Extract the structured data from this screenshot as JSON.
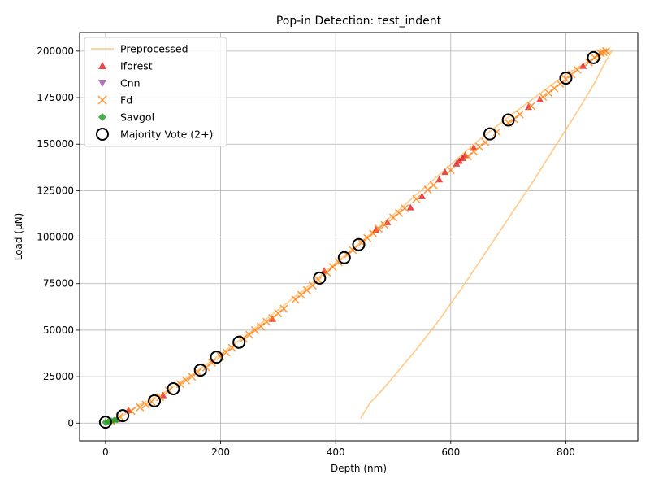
{
  "chart_data": {
    "type": "scatter",
    "title": "Pop-in Detection: test_indent",
    "xlabel": "Depth (nm)",
    "ylabel": "Load (µN)",
    "xlim": [
      -45,
      925
    ],
    "ylim": [
      -9500,
      210000
    ],
    "x_ticks": [
      0,
      200,
      400,
      600,
      800
    ],
    "y_ticks": [
      0,
      25000,
      50000,
      75000,
      100000,
      125000,
      150000,
      175000,
      200000
    ],
    "grid": true,
    "legend_position": "top-left",
    "series": [
      {
        "name": "Preprocessed",
        "kind": "line",
        "color": "#ffbf6e",
        "x": [
          0,
          15,
          30,
          60,
          100,
          150,
          200,
          250,
          300,
          350,
          400,
          450,
          500,
          550,
          600,
          650,
          700,
          750,
          800,
          850,
          880,
          870,
          850,
          820,
          780,
          740,
          700,
          660,
          620,
          580,
          540,
          510,
          480,
          460,
          450,
          443
        ],
        "y": [
          0,
          1500,
          4000,
          10000,
          16000,
          26000,
          37000,
          48500,
          61000,
          73000,
          86000,
          99000,
          112000,
          125500,
          139000,
          152500,
          164500,
          176000,
          187500,
          196500,
          200000,
          195000,
          183000,
          167500,
          148000,
          128500,
          110000,
          91500,
          73000,
          55500,
          39500,
          28500,
          17500,
          11000,
          6000,
          2500
        ]
      },
      {
        "name": "Iforest",
        "kind": "marker",
        "marker": "triangle-up",
        "color": "#e41a1c",
        "x": [
          20,
          40,
          100,
          290,
          380,
          470,
          490,
          530,
          550,
          580,
          590,
          610,
          615,
          620,
          625,
          640,
          735,
          755,
          830
        ],
        "y": [
          2000,
          7000,
          15000,
          56000,
          82000,
          104000,
          108000,
          116000,
          122000,
          131000,
          135000,
          139500,
          141000,
          142500,
          144000,
          148000,
          170000,
          174000,
          192000
        ]
      },
      {
        "name": "Cnn",
        "kind": "marker",
        "marker": "triangle-down",
        "color": "#984ea3",
        "x": [],
        "y": []
      },
      {
        "name": "Fd",
        "kind": "marker",
        "marker": "x",
        "color": "#ff7f0e",
        "x": [
          10,
          25,
          45,
          60,
          70,
          80,
          95,
          110,
          130,
          140,
          150,
          160,
          175,
          185,
          200,
          210,
          220,
          240,
          250,
          260,
          270,
          280,
          290,
          300,
          310,
          330,
          340,
          350,
          360,
          370,
          385,
          395,
          405,
          420,
          430,
          445,
          455,
          465,
          475,
          485,
          500,
          510,
          520,
          540,
          560,
          570,
          600,
          630,
          640,
          650,
          660,
          680,
          700,
          710,
          720,
          740,
          760,
          770,
          780,
          790,
          800,
          810,
          820,
          840,
          850,
          855,
          860,
          865,
          870
        ],
        "y": [
          1000,
          3500,
          6500,
          8500,
          10000,
          11500,
          14000,
          17500,
          21000,
          23000,
          25000,
          27500,
          30000,
          32500,
          36000,
          38000,
          40500,
          45500,
          47500,
          50000,
          52000,
          54500,
          56500,
          59000,
          61500,
          66500,
          69000,
          71500,
          74000,
          77000,
          81000,
          84000,
          86500,
          90500,
          93000,
          97000,
          99500,
          102000,
          104500,
          106500,
          110500,
          113000,
          115500,
          120500,
          125500,
          128000,
          136000,
          143500,
          146000,
          148500,
          151000,
          156500,
          161500,
          163500,
          166000,
          170500,
          175500,
          177500,
          180000,
          182500,
          185000,
          187500,
          190000,
          194000,
          196500,
          198000,
          199000,
          199500,
          200000
        ]
      },
      {
        "name": "Savgol",
        "kind": "marker",
        "marker": "diamond",
        "color": "#2ca02c",
        "x": [
          0,
          5,
          10,
          15,
          20
        ],
        "y": [
          500,
          800,
          1200,
          1500,
          1800
        ]
      },
      {
        "name": "Majority Vote (2+)",
        "kind": "marker",
        "marker": "circle-open",
        "color": "#000000",
        "x": [
          0,
          30,
          85,
          118,
          165,
          193,
          232,
          372,
          415,
          440,
          668,
          700,
          800,
          848
        ],
        "y": [
          500,
          4000,
          12000,
          18500,
          28500,
          35500,
          43500,
          78000,
          89000,
          96000,
          155500,
          163000,
          185500,
          196500
        ]
      }
    ]
  }
}
